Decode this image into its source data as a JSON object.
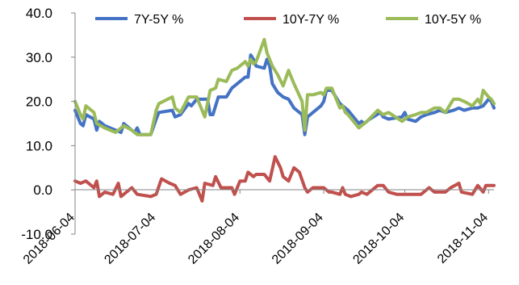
{
  "chart_data": {
    "type": "line",
    "title": "",
    "xlabel": "",
    "ylabel": "",
    "ylim": [
      -10,
      40
    ],
    "yticks": [
      {
        "value": -10,
        "label": "-10.0",
        "color": "#ff0000"
      },
      {
        "value": 0,
        "label": "0.0",
        "color": "#000000"
      },
      {
        "value": 10,
        "label": "10.0",
        "color": "#000000"
      },
      {
        "value": 20,
        "label": "20.0",
        "color": "#000000"
      },
      {
        "value": 30,
        "label": "30.0",
        "color": "#000000"
      },
      {
        "value": 40,
        "label": "40.0",
        "color": "#000000"
      }
    ],
    "xlim": [
      "2018-06-04",
      "2018-11-06"
    ],
    "xticks": [
      "2018-06-04",
      "2018-07-04",
      "2018-08-04",
      "2018-09-04",
      "2018-10-04",
      "2018-11-04"
    ],
    "grid": false,
    "legend_position": "top",
    "series": [
      {
        "name": "7Y-5Y %",
        "color": "#4472c4",
        "points": [
          [
            "2018-06-04",
            18.0
          ],
          [
            "2018-06-06",
            15.0
          ],
          [
            "2018-06-07",
            14.5
          ],
          [
            "2018-06-08",
            17.0
          ],
          [
            "2018-06-11",
            16.0
          ],
          [
            "2018-06-12",
            13.5
          ],
          [
            "2018-06-13",
            15.5
          ],
          [
            "2018-06-15",
            14.5
          ],
          [
            "2018-06-19",
            13.5
          ],
          [
            "2018-06-21",
            13.0
          ],
          [
            "2018-06-22",
            15.0
          ],
          [
            "2018-06-26",
            13.0
          ],
          [
            "2018-06-27",
            14.0
          ],
          [
            "2018-06-28",
            12.5
          ],
          [
            "2018-07-02",
            12.5
          ],
          [
            "2018-07-04",
            16.0
          ],
          [
            "2018-07-05",
            17.5
          ],
          [
            "2018-07-10",
            18.0
          ],
          [
            "2018-07-11",
            16.5
          ],
          [
            "2018-07-13",
            17.0
          ],
          [
            "2018-07-16",
            19.5
          ],
          [
            "2018-07-17",
            19.0
          ],
          [
            "2018-07-19",
            20.5
          ],
          [
            "2018-07-23",
            20.5
          ],
          [
            "2018-07-24",
            17.0
          ],
          [
            "2018-07-25",
            17.0
          ],
          [
            "2018-07-27",
            21.0
          ],
          [
            "2018-07-30",
            21.0
          ],
          [
            "2018-08-01",
            23.0
          ],
          [
            "2018-08-03",
            24.0
          ],
          [
            "2018-08-06",
            25.5
          ],
          [
            "2018-08-07",
            25.5
          ],
          [
            "2018-08-08",
            30.5
          ],
          [
            "2018-08-09",
            29.5
          ],
          [
            "2018-08-10",
            28.0
          ],
          [
            "2018-08-13",
            27.5
          ],
          [
            "2018-08-14",
            29.5
          ],
          [
            "2018-08-15",
            28.0
          ],
          [
            "2018-08-16",
            24.0
          ],
          [
            "2018-08-18",
            22.0
          ],
          [
            "2018-08-20",
            21.0
          ],
          [
            "2018-08-22",
            20.5
          ],
          [
            "2018-08-24",
            18.5
          ],
          [
            "2018-08-27",
            17.0
          ],
          [
            "2018-08-28",
            12.5
          ],
          [
            "2018-08-29",
            16.5
          ],
          [
            "2018-09-03",
            19.0
          ],
          [
            "2018-09-04",
            20.0
          ],
          [
            "2018-09-05",
            22.5
          ],
          [
            "2018-09-07",
            22.5
          ],
          [
            "2018-09-10",
            19.5
          ],
          [
            "2018-09-11",
            19.0
          ],
          [
            "2018-09-12",
            18.5
          ],
          [
            "2018-09-13",
            18.0
          ],
          [
            "2018-09-17",
            15.0
          ],
          [
            "2018-09-18",
            15.5
          ],
          [
            "2018-09-19",
            15.0
          ],
          [
            "2018-09-21",
            16.0
          ],
          [
            "2018-09-25",
            17.5
          ],
          [
            "2018-09-26",
            16.5
          ],
          [
            "2018-09-28",
            16.0
          ],
          [
            "2018-10-03",
            16.5
          ],
          [
            "2018-10-04",
            17.5
          ],
          [
            "2018-10-05",
            16.0
          ],
          [
            "2018-10-08",
            15.5
          ],
          [
            "2018-10-10",
            16.5
          ],
          [
            "2018-10-12",
            17.0
          ],
          [
            "2018-10-15",
            17.5
          ],
          [
            "2018-10-17",
            18.0
          ],
          [
            "2018-10-19",
            17.5
          ],
          [
            "2018-10-22",
            18.0
          ],
          [
            "2018-10-24",
            18.5
          ],
          [
            "2018-10-26",
            18.0
          ],
          [
            "2018-10-29",
            18.5
          ],
          [
            "2018-10-31",
            18.5
          ],
          [
            "2018-11-02",
            19.0
          ],
          [
            "2018-11-04",
            20.5
          ],
          [
            "2018-11-05",
            20.0
          ],
          [
            "2018-11-06",
            18.5
          ]
        ]
      },
      {
        "name": "10Y-7Y %",
        "color": "#c0504d",
        "points": [
          [
            "2018-06-04",
            2.0
          ],
          [
            "2018-06-06",
            1.5
          ],
          [
            "2018-06-08",
            2.0
          ],
          [
            "2018-06-11",
            0.5
          ],
          [
            "2018-06-12",
            2.0
          ],
          [
            "2018-06-13",
            -1.5
          ],
          [
            "2018-06-15",
            -0.5
          ],
          [
            "2018-06-18",
            -1.0
          ],
          [
            "2018-06-20",
            1.5
          ],
          [
            "2018-06-21",
            -1.5
          ],
          [
            "2018-06-25",
            0.5
          ],
          [
            "2018-06-27",
            -1.0
          ],
          [
            "2018-07-02",
            -1.5
          ],
          [
            "2018-07-04",
            -1.0
          ],
          [
            "2018-07-06",
            2.5
          ],
          [
            "2018-07-09",
            1.5
          ],
          [
            "2018-07-11",
            1.0
          ],
          [
            "2018-07-13",
            -1.0
          ],
          [
            "2018-07-16",
            0.0
          ],
          [
            "2018-07-19",
            0.5
          ],
          [
            "2018-07-21",
            -2.5
          ],
          [
            "2018-07-22",
            1.5
          ],
          [
            "2018-07-25",
            1.0
          ],
          [
            "2018-07-26",
            3.0
          ],
          [
            "2018-07-28",
            0.5
          ],
          [
            "2018-08-01",
            0.5
          ],
          [
            "2018-08-02",
            -1.0
          ],
          [
            "2018-08-04",
            2.0
          ],
          [
            "2018-08-06",
            2.0
          ],
          [
            "2018-08-07",
            4.0
          ],
          [
            "2018-08-09",
            3.0
          ],
          [
            "2018-08-10",
            3.5
          ],
          [
            "2018-08-13",
            3.5
          ],
          [
            "2018-08-15",
            2.0
          ],
          [
            "2018-08-17",
            7.5
          ],
          [
            "2018-08-19",
            5.0
          ],
          [
            "2018-08-20",
            3.0
          ],
          [
            "2018-08-22",
            2.0
          ],
          [
            "2018-08-24",
            5.0
          ],
          [
            "2018-08-26",
            4.0
          ],
          [
            "2018-08-28",
            0.5
          ],
          [
            "2018-08-29",
            -0.5
          ],
          [
            "2018-08-31",
            0.5
          ],
          [
            "2018-09-04",
            0.5
          ],
          [
            "2018-09-06",
            -0.5
          ],
          [
            "2018-09-07",
            -0.5
          ],
          [
            "2018-09-10",
            -1.0
          ],
          [
            "2018-09-11",
            0.5
          ],
          [
            "2018-09-12",
            -1.0
          ],
          [
            "2018-09-14",
            -1.5
          ],
          [
            "2018-09-17",
            -1.0
          ],
          [
            "2018-09-18",
            -0.5
          ],
          [
            "2018-09-20",
            -1.0
          ],
          [
            "2018-09-24",
            1.0
          ],
          [
            "2018-09-26",
            1.0
          ],
          [
            "2018-09-28",
            -0.5
          ],
          [
            "2018-10-01",
            -1.0
          ],
          [
            "2018-10-05",
            -1.0
          ],
          [
            "2018-10-08",
            -1.0
          ],
          [
            "2018-10-10",
            -1.0
          ],
          [
            "2018-10-13",
            0.5
          ],
          [
            "2018-10-15",
            -0.5
          ],
          [
            "2018-10-19",
            -0.5
          ],
          [
            "2018-10-21",
            0.5
          ],
          [
            "2018-10-24",
            1.5
          ],
          [
            "2018-10-25",
            -0.5
          ],
          [
            "2018-10-29",
            -1.0
          ],
          [
            "2018-10-31",
            1.0
          ],
          [
            "2018-11-02",
            -0.5
          ],
          [
            "2018-11-03",
            1.0
          ],
          [
            "2018-11-06",
            1.0
          ]
        ]
      },
      {
        "name": "10Y-5Y %",
        "color": "#9bbb59",
        "points": [
          [
            "2018-06-04",
            20.0
          ],
          [
            "2018-06-06",
            17.0
          ],
          [
            "2018-06-07",
            16.0
          ],
          [
            "2018-06-08",
            19.0
          ],
          [
            "2018-06-11",
            17.5
          ],
          [
            "2018-06-12",
            15.0
          ],
          [
            "2018-06-15",
            14.0
          ],
          [
            "2018-06-19",
            13.0
          ],
          [
            "2018-06-21",
            14.0
          ],
          [
            "2018-06-22",
            14.5
          ],
          [
            "2018-06-25",
            13.5
          ],
          [
            "2018-06-27",
            12.5
          ],
          [
            "2018-07-02",
            12.5
          ],
          [
            "2018-07-04",
            18.0
          ],
          [
            "2018-07-05",
            19.5
          ],
          [
            "2018-07-10",
            21.0
          ],
          [
            "2018-07-11",
            18.5
          ],
          [
            "2018-07-13",
            17.5
          ],
          [
            "2018-07-16",
            21.0
          ],
          [
            "2018-07-19",
            21.0
          ],
          [
            "2018-07-22",
            16.5
          ],
          [
            "2018-07-24",
            22.5
          ],
          [
            "2018-07-26",
            23.0
          ],
          [
            "2018-07-27",
            25.0
          ],
          [
            "2018-07-30",
            24.5
          ],
          [
            "2018-08-01",
            27.0
          ],
          [
            "2018-08-03",
            27.5
          ],
          [
            "2018-08-06",
            29.0
          ],
          [
            "2018-08-07",
            28.0
          ],
          [
            "2018-08-08",
            29.5
          ],
          [
            "2018-08-09",
            28.5
          ],
          [
            "2018-08-10",
            29.0
          ],
          [
            "2018-08-13",
            34.0
          ],
          [
            "2018-08-14",
            31.0
          ],
          [
            "2018-08-16",
            28.0
          ],
          [
            "2018-08-18",
            26.0
          ],
          [
            "2018-08-20",
            23.5
          ],
          [
            "2018-08-22",
            27.0
          ],
          [
            "2018-08-24",
            24.0
          ],
          [
            "2018-08-27",
            20.0
          ],
          [
            "2018-08-28",
            13.5
          ],
          [
            "2018-08-29",
            21.5
          ],
          [
            "2018-08-31",
            21.5
          ],
          [
            "2018-09-03",
            22.0
          ],
          [
            "2018-09-04",
            21.5
          ],
          [
            "2018-09-05",
            23.0
          ],
          [
            "2018-09-07",
            23.0
          ],
          [
            "2018-09-10",
            18.5
          ],
          [
            "2018-09-11",
            19.0
          ],
          [
            "2018-09-12",
            17.5
          ],
          [
            "2018-09-13",
            17.0
          ],
          [
            "2018-09-17",
            14.0
          ],
          [
            "2018-09-18",
            14.5
          ],
          [
            "2018-09-20",
            15.5
          ],
          [
            "2018-09-24",
            18.0
          ],
          [
            "2018-09-26",
            17.0
          ],
          [
            "2018-09-28",
            17.5
          ],
          [
            "2018-10-03",
            15.5
          ],
          [
            "2018-10-05",
            16.5
          ],
          [
            "2018-10-08",
            17.0
          ],
          [
            "2018-10-10",
            17.5
          ],
          [
            "2018-10-12",
            17.5
          ],
          [
            "2018-10-15",
            18.5
          ],
          [
            "2018-10-17",
            18.5
          ],
          [
            "2018-10-19",
            17.5
          ],
          [
            "2018-10-22",
            20.5
          ],
          [
            "2018-10-24",
            20.5
          ],
          [
            "2018-10-26",
            20.0
          ],
          [
            "2018-10-29",
            19.0
          ],
          [
            "2018-10-31",
            20.5
          ],
          [
            "2018-11-01",
            19.5
          ],
          [
            "2018-11-02",
            22.5
          ],
          [
            "2018-11-04",
            21.0
          ],
          [
            "2018-11-05",
            20.5
          ],
          [
            "2018-11-06",
            19.5
          ]
        ]
      }
    ]
  }
}
